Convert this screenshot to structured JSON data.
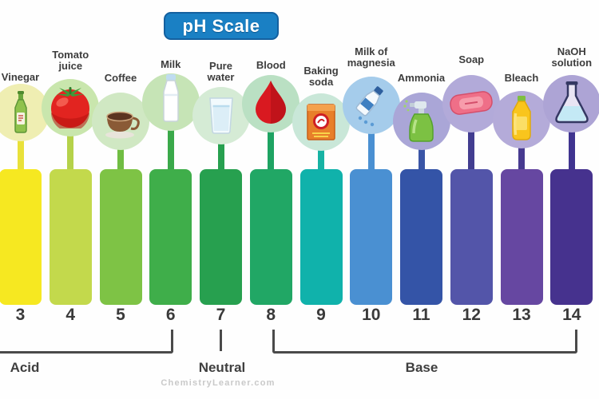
{
  "title": "pH Scale",
  "watermark": "ChemistryLearner.com",
  "regions": {
    "acid": "Acid",
    "neutral": "Neutral",
    "base": "Base"
  },
  "colors": {
    "title_bg": "#1a80c4",
    "title_border": "#14609f",
    "title_text": "#ffffff",
    "bracket": "#4a4a4a",
    "region_text": "#3f3f3f",
    "number_text": "#3a3a3a",
    "label_text": "#3d3d3d",
    "watermark_text": "#c9c9c9",
    "background": "#fefefe"
  },
  "scale": {
    "items": [
      {
        "ph": "3",
        "label": "Vinegar",
        "label_lines": [
          "Vinegar"
        ],
        "icon": "vinegar-icon",
        "bar_color": "#f6e821",
        "stem_color": "#e9e13a",
        "circle_color": "#efeeb2"
      },
      {
        "ph": "4",
        "label": "Tomato juice",
        "label_lines": [
          "Tomato",
          "juice"
        ],
        "icon": "tomato-icon",
        "bar_color": "#c3d94c",
        "stem_color": "#b5d24a",
        "circle_color": "#c9e6ad"
      },
      {
        "ph": "5",
        "label": "Coffee",
        "label_lines": [
          "Coffee"
        ],
        "icon": "coffee-icon",
        "bar_color": "#7ec345",
        "stem_color": "#70bd43",
        "circle_color": "#d0e8c3"
      },
      {
        "ph": "6",
        "label": "Milk",
        "label_lines": [
          "Milk"
        ],
        "icon": "milk-icon",
        "bar_color": "#3fae4a",
        "stem_color": "#3aa94a",
        "circle_color": "#c6e4b6"
      },
      {
        "ph": "7",
        "label": "Pure water",
        "label_lines": [
          "Pure",
          "water"
        ],
        "icon": "water-glass-icon",
        "bar_color": "#27a04f",
        "stem_color": "#27a04f",
        "circle_color": "#d5ebd5"
      },
      {
        "ph": "8",
        "label": "Blood",
        "label_lines": [
          "Blood"
        ],
        "icon": "blood-drop-icon",
        "bar_color": "#21a765",
        "stem_color": "#1ea362",
        "circle_color": "#bae0c3"
      },
      {
        "ph": "9",
        "label": "Baking soda",
        "label_lines": [
          "Baking",
          "soda"
        ],
        "icon": "baking-soda-icon",
        "bar_color": "#10b2ab",
        "stem_color": "#17b3a4",
        "circle_color": "#c9e7d8"
      },
      {
        "ph": "10",
        "label": "Milk of magnesia",
        "label_lines": [
          "Milk of",
          "magnesia"
        ],
        "icon": "magnesia-icon",
        "bar_color": "#4a90d2",
        "stem_color": "#4a90d2",
        "circle_color": "#a5cceb"
      },
      {
        "ph": "11",
        "label": "Ammonia",
        "label_lines": [
          "Ammonia"
        ],
        "icon": "ammonia-spray-icon",
        "bar_color": "#3454a7",
        "stem_color": "#3a55a6",
        "circle_color": "#aaa6d7"
      },
      {
        "ph": "12",
        "label": "Soap",
        "label_lines": [
          "Soap"
        ],
        "icon": "soap-bar-icon",
        "bar_color": "#5355a9",
        "stem_color": "#423d90",
        "circle_color": "#b2aad9"
      },
      {
        "ph": "13",
        "label": "Bleach",
        "label_lines": [
          "Bleach"
        ],
        "icon": "bleach-bottle-icon",
        "bar_color": "#6647a1",
        "stem_color": "#473a90",
        "circle_color": "#b4abd9"
      },
      {
        "ph": "14",
        "label": "NaOH solution",
        "label_lines": [
          "NaOH",
          "solution"
        ],
        "icon": "flask-icon",
        "bar_color": "#46328e",
        "stem_color": "#403490",
        "circle_color": "#ada4d5"
      }
    ]
  }
}
